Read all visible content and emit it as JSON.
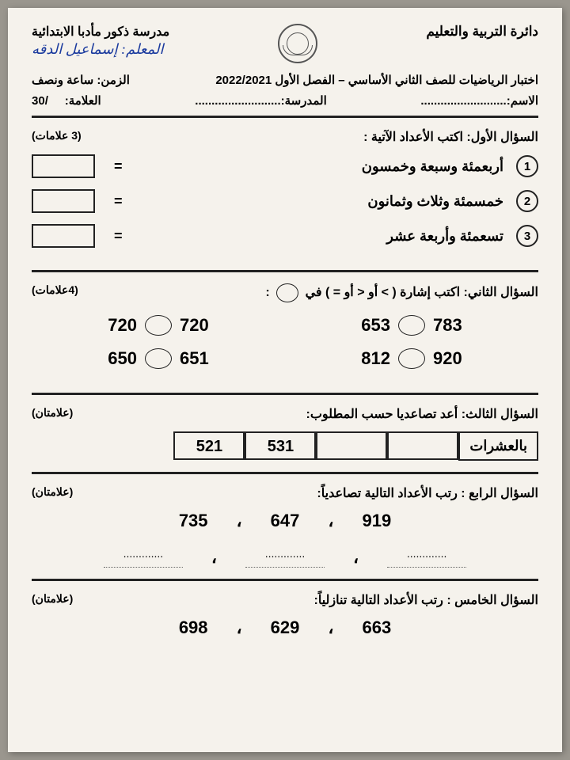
{
  "header": {
    "ministry": "دائرة التربية والتعليم",
    "school": "مدرسة ذكور مأدبا الابتدائية",
    "teacher": "المعلم: إسماعيل الدقه"
  },
  "exam": {
    "title": "اختبار الرياضيات للصف الثاني الأساسي – الفصل الأول 2022/2021",
    "time_label": "الزمن: ساعة ونصف",
    "name_label": "الاسم:",
    "school_label": "المدرسة:",
    "mark_label": "العلامة:",
    "mark_total": "/30",
    "dots": ".........................."
  },
  "q1": {
    "title": "السؤال الأول: اكتب الأعداد الآتية :",
    "marks": "(3 علامات)",
    "items": [
      {
        "n": "1",
        "text": "أربعمئة وسبعة وخمسون"
      },
      {
        "n": "2",
        "text": "خمسمئة وثلاث وثمانون"
      },
      {
        "n": "3",
        "text": "تسعمئة وأربعة عشر"
      }
    ],
    "eq": "="
  },
  "q2": {
    "title": "السؤال الثاني: اكتب إشارة ( > أو < أو = ) في",
    "marks": "(4علامات)",
    "pairs": [
      {
        "a": "783",
        "b": "653",
        "c": "720",
        "d": "720"
      },
      {
        "a": "920",
        "b": "812",
        "c": "651",
        "d": "650"
      }
    ]
  },
  "q3": {
    "title": "السؤال الثالث: أعد تصاعديا حسب المطلوب:",
    "marks": "(علامتان)",
    "label": "بالعشرات",
    "values": [
      "",
      "",
      "531",
      "521"
    ]
  },
  "q4": {
    "title": "السؤال الرابع : رتب الأعداد التالية تصاعدياً:",
    "marks": "(علامتان)",
    "numbers": [
      "919",
      "647",
      "735"
    ],
    "sep": "،"
  },
  "q5": {
    "title": "السؤال الخامس : رتب الأعداد التالية تنازلياً:",
    "marks": "(علامتان)",
    "numbers": [
      "663",
      "629",
      "698"
    ],
    "sep": "،"
  }
}
